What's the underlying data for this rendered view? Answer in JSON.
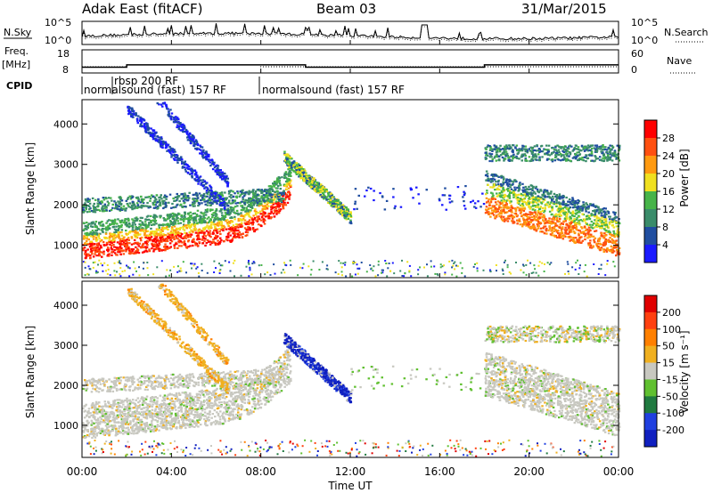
{
  "header": {
    "station": "Adak East (fitACF)",
    "beam": "Beam 03",
    "date": "31/Mar/2015"
  },
  "labels": {
    "nsky": "N.Sky",
    "nsearch": "N.Search",
    "freq": "Freq.",
    "mhz": "[MHz]",
    "nave": "Nave",
    "cpid": "CPID",
    "cpid_1": "normalsound (fast) 157 RF",
    "cpid_2": "rbsp 200 RF",
    "cpid_3": "normalsound (fast) 157 RF",
    "slant_range": "Slant Range [km]",
    "time": "Time UT",
    "power": "Power [dB]",
    "velocity": "Velocity [m s⁻¹]"
  },
  "ticks": {
    "noise_top": "10^5",
    "noise_bottom": "10^0",
    "freq_top": "18",
    "freq_bottom": "8",
    "nave_top": "60",
    "nave_bottom": "0",
    "range": [
      "1000",
      "2000",
      "3000",
      "4000"
    ],
    "time": [
      "00:00",
      "04:00",
      "08:00",
      "12:00",
      "16:00",
      "20:00",
      "00:00"
    ],
    "power": [
      "4",
      "8",
      "12",
      "16",
      "20",
      "24",
      "28"
    ],
    "velocity": [
      "200",
      "100",
      "50",
      "15",
      "-15",
      "-50",
      "-100",
      "-200"
    ]
  },
  "chart_data": [
    {
      "type": "line",
      "name": "noise",
      "x_range_hours": [
        0,
        24
      ],
      "series": [
        {
          "name": "N.Sky",
          "style": "solid"
        },
        {
          "name": "N.Search",
          "style": "dotted"
        }
      ],
      "ylim_labels": [
        "10^0",
        "10^5"
      ]
    },
    {
      "type": "line",
      "name": "frequency",
      "x_hours": [
        0,
        2,
        8,
        10,
        18,
        24
      ],
      "freq_mhz": [
        10.5,
        11.5,
        11.5,
        10.5,
        11.5,
        11.5
      ],
      "ylim_freq": [
        8,
        18
      ],
      "ylim_nave": [
        0,
        60
      ]
    },
    {
      "type": "heatmap",
      "name": "power",
      "xlim_hours": [
        0,
        24
      ],
      "ylim_km": [
        200,
        4600
      ],
      "colorbar": {
        "label": "Power [dB]",
        "ticks": [
          4,
          8,
          12,
          16,
          20,
          24,
          28
        ]
      },
      "colors": [
        "#1a1aff",
        "#204ea0",
        "#3a8c6a",
        "#47b449",
        "#f0e020",
        "#ff9a10",
        "#ff5010",
        "#ff0000"
      ]
    },
    {
      "type": "heatmap",
      "name": "velocity",
      "xlim_hours": [
        0,
        24
      ],
      "ylim_km": [
        200,
        4600
      ],
      "colorbar": {
        "label": "Velocity [m s⁻¹]",
        "ticks": [
          200,
          100,
          50,
          15,
          -15,
          -50,
          -100,
          -200
        ]
      },
      "colors": [
        "#1020c0",
        "#2040e0",
        "#207a40",
        "#60c030",
        "#c8c8c0",
        "#f0b020",
        "#ff8000",
        "#ff4010",
        "#e00000"
      ]
    }
  ]
}
